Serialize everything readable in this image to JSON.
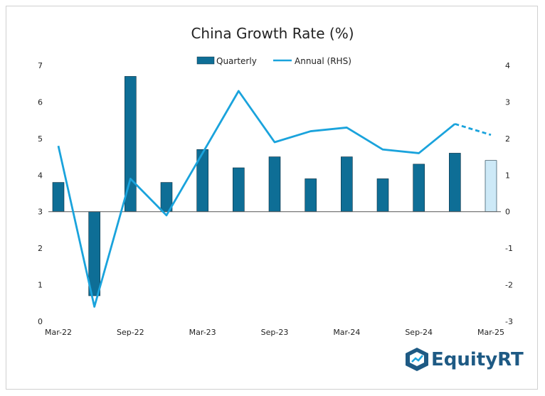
{
  "chart_data": {
    "type": "bar+line",
    "title": "China Growth Rate (%)",
    "categories": [
      "Mar-22",
      "Jun-22",
      "Sep-22",
      "Dec-22",
      "Mar-23",
      "Jun-23",
      "Sep-23",
      "Dec-23",
      "Mar-24",
      "Jun-24",
      "Sep-24",
      "Dec-24",
      "Mar-25"
    ],
    "x_tick_labels": [
      "Mar-22",
      "Sep-22",
      "Mar-23",
      "Sep-23",
      "Mar-24",
      "Sep-24",
      "Mar-25"
    ],
    "series": [
      {
        "name": "Quarterly",
        "type": "bar",
        "axis": "left",
        "color": "#0e6e96",
        "values": [
          3.8,
          0.7,
          6.7,
          3.8,
          4.7,
          4.2,
          4.5,
          3.9,
          4.5,
          3.9,
          4.3,
          4.6,
          4.4
        ],
        "forecast_index": 12,
        "forecast_color": "#cde9f7"
      },
      {
        "name": "Annual (RHS)",
        "type": "line",
        "axis": "right",
        "color": "#1aa3dc",
        "values": [
          1.8,
          -2.6,
          0.9,
          -0.1,
          1.6,
          3.3,
          1.9,
          2.2,
          2.3,
          1.7,
          1.6,
          2.4,
          2.1
        ],
        "dashed_from_index": 11
      }
    ],
    "left_axis": {
      "min": 0,
      "max": 7,
      "ticks": [
        0,
        1,
        2,
        3,
        4,
        5,
        6,
        7
      ],
      "baseline": 3
    },
    "right_axis": {
      "min": -3,
      "max": 4,
      "ticks": [
        -3,
        -2,
        -1,
        0,
        1,
        2,
        3,
        4
      ]
    },
    "legend_position": "top-center",
    "grid": false
  },
  "branding": {
    "logo_text": "EquityRT",
    "logo_icon": "equityrt-logo-icon",
    "logo_color": "#1e5a84"
  }
}
